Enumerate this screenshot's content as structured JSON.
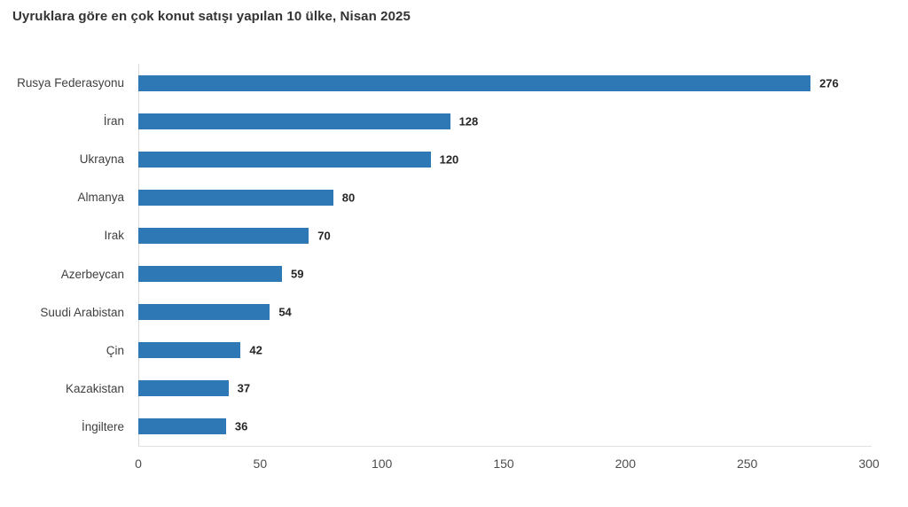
{
  "title": "Uyruklara göre en çok konut satışı yapılan 10 ülke, Nisan 2025",
  "chart_data": {
    "type": "bar",
    "orientation": "horizontal",
    "title": "Uyruklara göre en çok konut satışı yapılan 10 ülke, Nisan 2025",
    "categories": [
      "Rusya Federasyonu",
      "İran",
      "Ukrayna",
      "Almanya",
      "Irak",
      "Azerbeycan",
      "Suudi Arabistan",
      "Çin",
      "Kazakistan",
      "İngiltere"
    ],
    "values": [
      276,
      128,
      120,
      80,
      70,
      59,
      54,
      42,
      37,
      36
    ],
    "xlabel": "",
    "ylabel": "",
    "xlim": [
      0,
      300
    ],
    "x_ticks": [
      0,
      50,
      100,
      150,
      200,
      250,
      300
    ],
    "grid": false,
    "legend": "none",
    "value_labels": true
  },
  "colors": {
    "bar": "#2e79b5",
    "axis_line": "#d9d9d9",
    "title_text": "#333333",
    "category_text": "#404040",
    "value_text": "#262626",
    "tick_text": "#4d4d4d"
  }
}
